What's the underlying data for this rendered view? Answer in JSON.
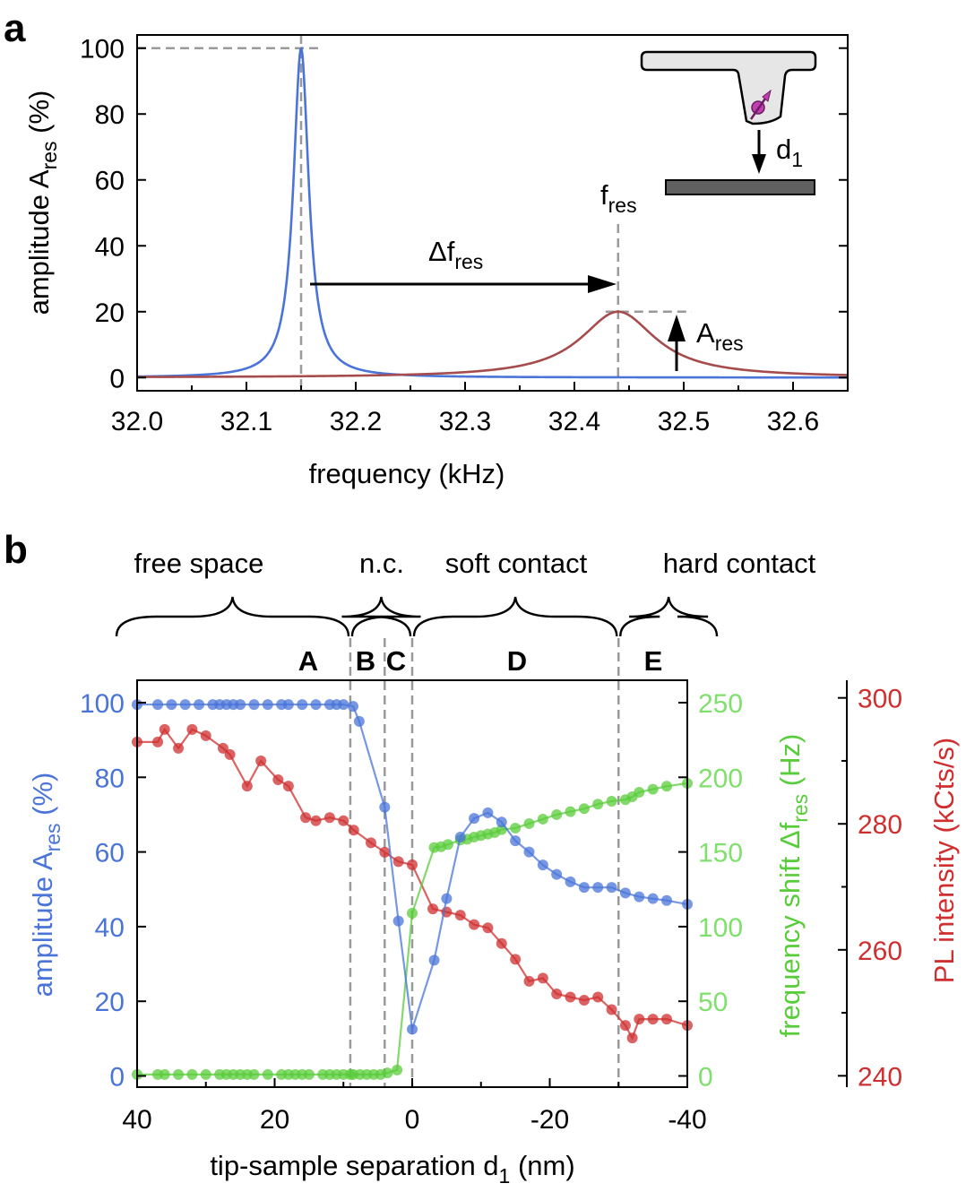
{
  "panels": {
    "a": "a",
    "b": "b"
  },
  "chart_data": [
    {
      "type": "line",
      "xlabel": "frequency (kHz)",
      "ylabel": {
        "main": "amplitude A",
        "sub": "res",
        "unit": " (%)"
      },
      "xlim": [
        32.0,
        32.65
      ],
      "ylim": [
        -4,
        104
      ],
      "xticks": [
        "32.0",
        "32.1",
        "32.2",
        "32.3",
        "32.4",
        "32.5",
        "32.6"
      ],
      "yticks": [
        "0",
        "20",
        "40",
        "60",
        "80",
        "100"
      ],
      "series": [
        {
          "color": "#4a74d8",
          "peak_x": 32.15,
          "peak_y": 100,
          "half_width_khz": 0.0085
        },
        {
          "color": "#a64c4c",
          "peak_x": 32.44,
          "peak_y": 20,
          "half_width_khz": 0.042
        }
      ],
      "annotations": {
        "delta": "Δf",
        "delta_sub": "res",
        "fres": "f",
        "fres_sub": "res",
        "ares": "A",
        "ares_sub": "res",
        "d1": "d",
        "d1_sub": "1"
      },
      "colors": {
        "tip": "#e6e6e6",
        "sample": "#606060",
        "nv": "#c03fb0"
      }
    },
    {
      "type": "line",
      "xlabel": {
        "main": "tip-sample separation d",
        "sub": "1",
        "unit": " (nm)"
      },
      "xlim": [
        40,
        -40
      ],
      "xticks": [
        "40",
        "20",
        "0",
        "-20",
        "-40"
      ],
      "regions": [
        "free space",
        "n.c.",
        "soft contact",
        "hard contact"
      ],
      "zones": [
        "A",
        "B",
        "C",
        "D",
        "E"
      ],
      "boundaries": [
        9,
        4,
        0,
        -30
      ],
      "left_axis": {
        "label": {
          "main": "amplitude A",
          "sub": "res",
          "unit": " (%)"
        },
        "ylim": [
          -3,
          106
        ],
        "ticks": [
          "0",
          "20",
          "40",
          "60",
          "80",
          "100"
        ],
        "color": "#4a74d8"
      },
      "middle_axis": {
        "label": {
          "main": "frequency shift Δf",
          "sub": "res",
          "unit": " (Hz)"
        },
        "ylim": [
          -7.5,
          265
        ],
        "ticks": [
          "0",
          "50",
          "100",
          "150",
          "200",
          "250"
        ],
        "color": "#59cc3b"
      },
      "right_axis": {
        "label": "PL intensity (kCts/s)",
        "ylim": [
          238.2,
          302.8
        ],
        "ticks": [
          "240",
          "260",
          "280",
          "300"
        ],
        "color": "#cf2f2f"
      },
      "series": [
        {
          "axis": "left",
          "color": "#4a74d8",
          "x": [
            40,
            37,
            35,
            33,
            31,
            29,
            28,
            27,
            26,
            25,
            23,
            21,
            19,
            18,
            16,
            14,
            12,
            11,
            10,
            8.6,
            7.7,
            4,
            2,
            0,
            -3.2,
            -5,
            -7,
            -9,
            -11,
            -13,
            -15,
            -17,
            -19,
            -21,
            -23,
            -25,
            -27,
            -29,
            -31,
            -33,
            -35,
            -37,
            -40
          ],
          "y": [
            99.5,
            99.5,
            99.5,
            99.5,
            99.5,
            99.5,
            99.5,
            99.5,
            99.5,
            99.5,
            99.5,
            99.5,
            99.5,
            99.5,
            99.5,
            99.5,
            99.5,
            99.5,
            99.5,
            99,
            95,
            72,
            41.5,
            12.5,
            31,
            47.5,
            64,
            69,
            70.5,
            68,
            63,
            60,
            56.5,
            54,
            52,
            50.5,
            50.5,
            50.5,
            49,
            48,
            47.5,
            47,
            46
          ]
        },
        {
          "axis": "middle",
          "color": "#59cc3b",
          "x": [
            40,
            37,
            36,
            34,
            32,
            30,
            28,
            27,
            26,
            25,
            24,
            23,
            21,
            19,
            18,
            17,
            16,
            15,
            13,
            12,
            11,
            10,
            9,
            8.6,
            7.6,
            6.6,
            5.6,
            4.6,
            3.6,
            2.2,
            0,
            -3.2,
            -4.2,
            -5.2,
            -7,
            -8,
            -9,
            -10,
            -11,
            -12,
            -13,
            -15,
            -17,
            -19,
            -21,
            -23,
            -25,
            -27,
            -29,
            -31,
            -32,
            -33,
            -35,
            -37,
            -40
          ],
          "y": [
            1,
            1,
            1,
            1,
            1,
            1,
            1,
            1,
            1,
            1,
            1,
            1,
            1,
            1,
            1,
            1,
            1,
            1,
            1,
            1,
            1,
            1,
            1,
            1,
            1,
            1,
            1,
            1,
            2,
            4,
            109,
            153,
            153.5,
            155,
            158,
            158.5,
            160,
            161,
            162,
            163,
            165,
            166,
            169,
            172,
            175,
            177,
            179,
            182,
            184,
            185,
            187,
            190,
            192,
            194,
            196
          ]
        },
        {
          "axis": "right",
          "color": "#cf2f2f",
          "x": [
            40,
            37,
            36,
            34,
            32,
            30,
            27.5,
            26.5,
            24,
            22,
            19.5,
            18,
            15.5,
            14,
            12,
            10,
            8.5,
            6,
            4,
            2,
            0,
            -3,
            -5,
            -7,
            -9,
            -11,
            -13,
            -15,
            -17,
            -19,
            -21,
            -23,
            -25,
            -27,
            -29,
            -31,
            -32,
            -33,
            -35,
            -37,
            -40
          ],
          "y": [
            293,
            293,
            295,
            292,
            295,
            294,
            292,
            291,
            286,
            290,
            287,
            286,
            281,
            280.5,
            281,
            280.5,
            279,
            277,
            275.5,
            274,
            273.5,
            266.5,
            266,
            265.5,
            264,
            263.5,
            261,
            258.5,
            255,
            255.5,
            253,
            252.5,
            252,
            252.5,
            250.5,
            248,
            246,
            249,
            249,
            249,
            248
          ]
        }
      ]
    }
  ]
}
